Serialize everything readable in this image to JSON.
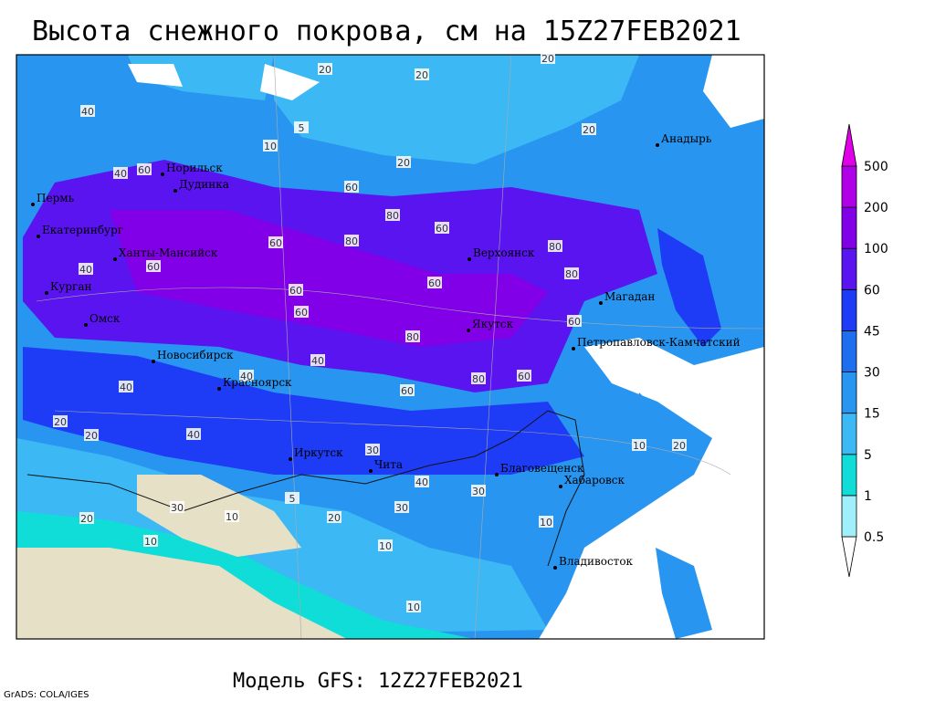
{
  "header": {
    "title": "Высота снежного покрова, см на 15Z27FEB2021"
  },
  "legend": {
    "levels": [
      0.5,
      1,
      5,
      15,
      30,
      45,
      60,
      100,
      200,
      500
    ],
    "colors": [
      "#ffffff",
      "#9ff0fa",
      "#10dcd8",
      "#3cb8f5",
      "#2896f0",
      "#1e6ef0",
      "#1e3cf5",
      "#5a14f0",
      "#8200e8",
      "#b000e8",
      "#e000e8"
    ]
  },
  "cities": [
    "Норильск",
    "Дудинка",
    "Пермь",
    "Екатеринбург",
    "Ханты-Мансийск",
    "Курган",
    "Омск",
    "Новосибирск",
    "Красноярск",
    "Иркутск",
    "Чита",
    "Верхоянск",
    "Якутск",
    "Анадырь",
    "Магадан",
    "Петропавловск-Камчатский",
    "Благовещенск",
    "Хабаровск",
    "Владивосток"
  ],
  "contour_labels": [
    20,
    20,
    20,
    10,
    5,
    20,
    20,
    40,
    40,
    60,
    60,
    80,
    60,
    80,
    60,
    80,
    60,
    60,
    40,
    60,
    80,
    60,
    80,
    60,
    80,
    60,
    40,
    40,
    60,
    40,
    20,
    40,
    20,
    30,
    30,
    40,
    30,
    20,
    10,
    10,
    10,
    5,
    10,
    20,
    30,
    10,
    10,
    20
  ],
  "footer": {
    "model": "Модель GFS: 12Z27FEB2021",
    "credit": "GrADS: COLA/IGES"
  }
}
